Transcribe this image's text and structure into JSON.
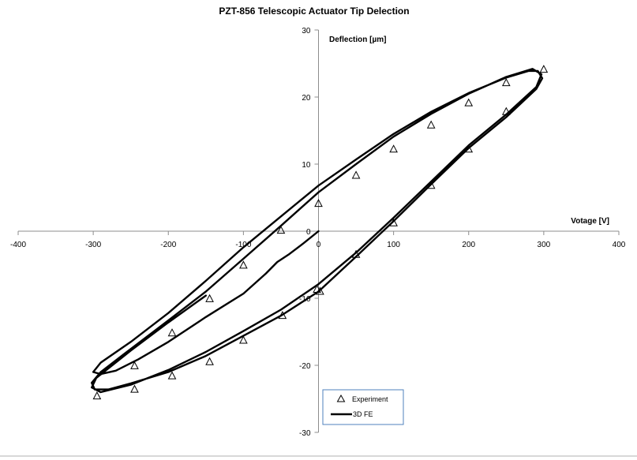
{
  "chart_data": {
    "type": "scatter",
    "title": "PZT-856 Telescopic Actuator Tip Delection",
    "xlabel": "Votage [V]",
    "ylabel": "Deflection [µm]",
    "xlim": [
      -400,
      400
    ],
    "ylim": [
      -30,
      30
    ],
    "x_ticks": [
      -400,
      -300,
      -200,
      -100,
      0,
      100,
      200,
      300,
      400
    ],
    "y_ticks": [
      -30,
      -20,
      -10,
      0,
      10,
      20,
      30
    ],
    "grid": false,
    "legend_position": "bottom-right",
    "series": [
      {
        "name": "Experiment",
        "marker": "open-triangle",
        "color": "#000000",
        "points": [
          [
            300,
            24.1
          ],
          [
            250,
            22.1
          ],
          [
            200,
            19.1
          ],
          [
            150,
            15.8
          ],
          [
            100,
            12.2
          ],
          [
            50,
            8.3
          ],
          [
            0,
            4.1
          ],
          [
            -50,
            0.1
          ],
          [
            -100,
            -5.1
          ],
          [
            -145,
            -10.1
          ],
          [
            -195,
            -15.2
          ],
          [
            -245,
            -20.1
          ],
          [
            -295,
            -24.6
          ],
          [
            -245,
            -23.6
          ],
          [
            -195,
            -21.6
          ],
          [
            -145,
            -19.5
          ],
          [
            -100,
            -16.3
          ],
          [
            -48,
            -12.6
          ],
          [
            -2,
            -8.7
          ],
          [
            2,
            -9.0
          ],
          [
            50,
            -3.5
          ],
          [
            100,
            1.2
          ],
          [
            150,
            6.8
          ],
          [
            200,
            12.2
          ],
          [
            250,
            17.8
          ]
        ]
      },
      {
        "name": "3D FE",
        "marker": "line",
        "color": "#000000",
        "points": [
          [
            0,
            0
          ],
          [
            -20,
            -1.8
          ],
          [
            -40,
            -3.5
          ],
          [
            -55,
            -4.6
          ],
          [
            -70,
            -6.3
          ],
          [
            -100,
            -9.3
          ],
          [
            -150,
            -12.8
          ],
          [
            -200,
            -16.5
          ],
          [
            -240,
            -19.1
          ],
          [
            -270,
            -20.8
          ],
          [
            -290,
            -21.3
          ],
          [
            -300,
            -21.0
          ],
          [
            -290,
            -19.6
          ],
          [
            -250,
            -16.5
          ],
          [
            -200,
            -12.2
          ],
          [
            -150,
            -7.4
          ],
          [
            -100,
            -2.4
          ],
          [
            -50,
            2.2
          ],
          [
            0,
            6.8
          ],
          [
            50,
            10.7
          ],
          [
            100,
            14.5
          ],
          [
            150,
            17.8
          ],
          [
            200,
            20.6
          ],
          [
            250,
            22.9
          ],
          [
            280,
            23.9
          ],
          [
            292,
            23.9
          ],
          [
            298,
            22.8
          ],
          [
            290,
            21.2
          ],
          [
            250,
            17.0
          ],
          [
            200,
            12.4
          ],
          [
            150,
            7.0
          ],
          [
            100,
            1.5
          ],
          [
            50,
            -3.8
          ],
          [
            0,
            -9.0
          ],
          [
            -50,
            -12.6
          ],
          [
            -100,
            -15.6
          ],
          [
            -150,
            -18.6
          ],
          [
            -200,
            -21.0
          ],
          [
            -250,
            -22.7
          ],
          [
            -280,
            -23.6
          ],
          [
            -298,
            -23.6
          ],
          [
            -302,
            -22.6
          ],
          [
            -290,
            -21.0
          ],
          [
            -260,
            -18.4
          ],
          [
            -200,
            -13.3
          ],
          [
            -150,
            -9.0
          ],
          [
            -100,
            -4.1
          ],
          [
            -50,
            0.8
          ],
          [
            0,
            5.8
          ],
          [
            50,
            10.0
          ],
          [
            100,
            14.1
          ],
          [
            150,
            17.5
          ],
          [
            200,
            20.5
          ],
          [
            250,
            23.0
          ],
          [
            285,
            24.2
          ],
          [
            297,
            23.4
          ],
          [
            290,
            21.5
          ],
          [
            250,
            17.4
          ],
          [
            200,
            12.8
          ],
          [
            150,
            7.4
          ],
          [
            100,
            2.0
          ],
          [
            50,
            -3.2
          ],
          [
            0,
            -7.9
          ],
          [
            -50,
            -11.7
          ],
          [
            -100,
            -14.9
          ],
          [
            -150,
            -18.0
          ],
          [
            -200,
            -20.7
          ],
          [
            -250,
            -22.9
          ],
          [
            -290,
            -24.0
          ],
          [
            -302,
            -23.3
          ],
          [
            -296,
            -21.9
          ],
          [
            -250,
            -17.8
          ],
          [
            -200,
            -13.6
          ],
          [
            -150,
            -9.6
          ]
        ]
      }
    ]
  }
}
